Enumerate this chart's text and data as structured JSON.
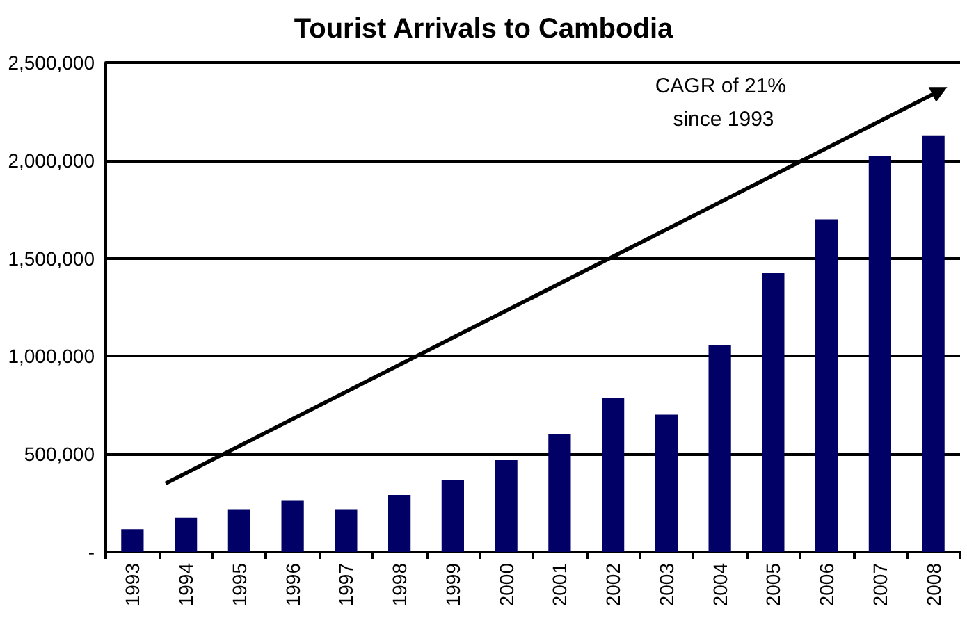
{
  "chart_data": {
    "type": "bar",
    "title": "Tourist Arrivals to Cambodia",
    "categories": [
      "1993",
      "1994",
      "1995",
      "1996",
      "1997",
      "1998",
      "1999",
      "2000",
      "2001",
      "2002",
      "2003",
      "2004",
      "2005",
      "2006",
      "2007",
      "2008"
    ],
    "values": [
      116000,
      175000,
      218000,
      261000,
      218000,
      291000,
      367000,
      469000,
      602000,
      787000,
      701000,
      1057000,
      1424000,
      1699000,
      2021000,
      2128000
    ],
    "color": "#000066",
    "ylim": [
      0,
      2500000
    ],
    "yticks": [
      {
        "value": 0,
        "label": "-"
      },
      {
        "value": 500000,
        "label": "500,000"
      },
      {
        "value": 1000000,
        "label": "1,000,000"
      },
      {
        "value": 1500000,
        "label": "1,500,000"
      },
      {
        "value": 2000000,
        "label": "2,000,000"
      },
      {
        "value": 2500000,
        "label": "2,500,000"
      }
    ],
    "grid": "y",
    "annotations": [
      "CAGR of 21% since 1993"
    ]
  }
}
